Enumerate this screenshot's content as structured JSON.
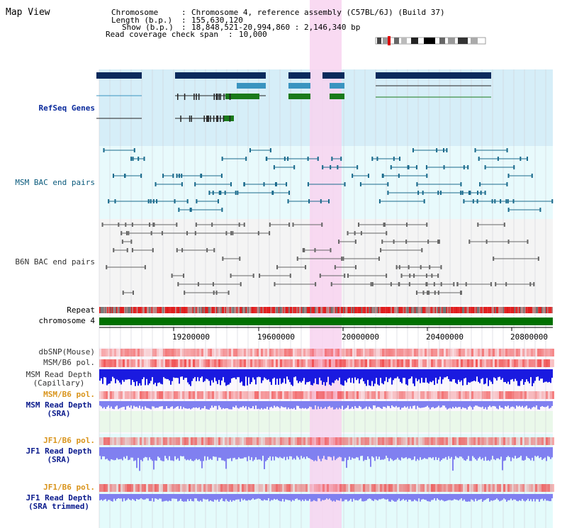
{
  "title": "Map View",
  "header": {
    "chromosome_key": "Chromosome",
    "chromosome_val": "Chromosome 4, reference assembly (C57BL/6J) (Build 37)",
    "length_key": "Length (b.p.)",
    "length_val": "155,630,120",
    "show_key": "Show (b.p.)",
    "show_val": "18,848,521-20,994,860 : 2,146,340 bp",
    "coverage_key": "Read coverage check span",
    "coverage_val": "10,000"
  },
  "tracks": {
    "refseq": "RefSeq Genes",
    "msm_bac": "MSM BAC end pairs",
    "b6n_bac": "B6N BAC end pairs",
    "repeat": "Repeat",
    "chromosome": "chromosome 4",
    "dbsnp": "dbSNP(Mouse)",
    "msm_b6_pol_1": "MSM/B6 pol.",
    "msm_read_depth_cap_1": "MSM Read Depth",
    "msm_read_depth_cap_2": "(Capillary)",
    "msm_b6_pol_2": "MSM/B6 pol.",
    "msm_read_depth_sra_1": "MSM Read Depth",
    "msm_read_depth_sra_2": "(SRA)",
    "jf1_b6_pol_1": "JF1/B6 pol.",
    "jf1_read_depth_1": "JF1 Read Depth",
    "jf1_read_depth_2": "(SRA)",
    "jf1_b6_pol_2": "JF1/B6 pol.",
    "jf1_trim_1": "JF1 Read Depth",
    "jf1_trim_2": "(SRA trimmed)"
  },
  "axis_ticks": [
    "19200000",
    "19600000",
    "20000000",
    "20400000",
    "20800000"
  ],
  "colors": {
    "refseq_bg": "#d6eef8",
    "msm_bg": "#e8fafc",
    "b6n_bg": "#f4f4f4",
    "highlight": "#f8d4f0",
    "chrom_green": "#007000",
    "gene_navy": "#0a2a5c",
    "gene_green": "#1a7a1a",
    "gene_cyan": "#3a94c0",
    "msm_feature": "#1a6a8c",
    "b6n_feature": "#666666",
    "depth_blue": "#1a1ae0",
    "depth_light": "#8080f0",
    "pol_red": "#f04040"
  }
}
